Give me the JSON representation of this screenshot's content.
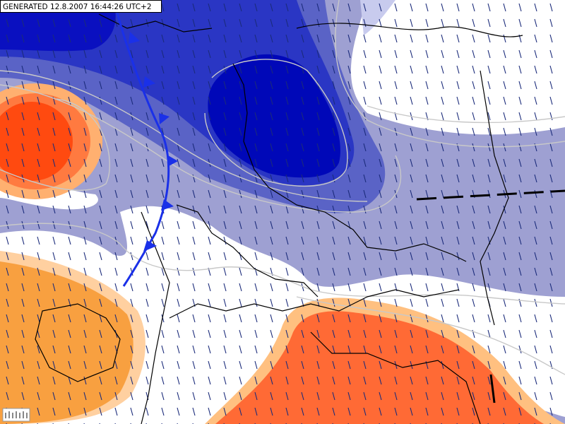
{
  "header": {
    "generated": "GENERATED 12.8.2007 16:44:26 UTC+2"
  }
}
